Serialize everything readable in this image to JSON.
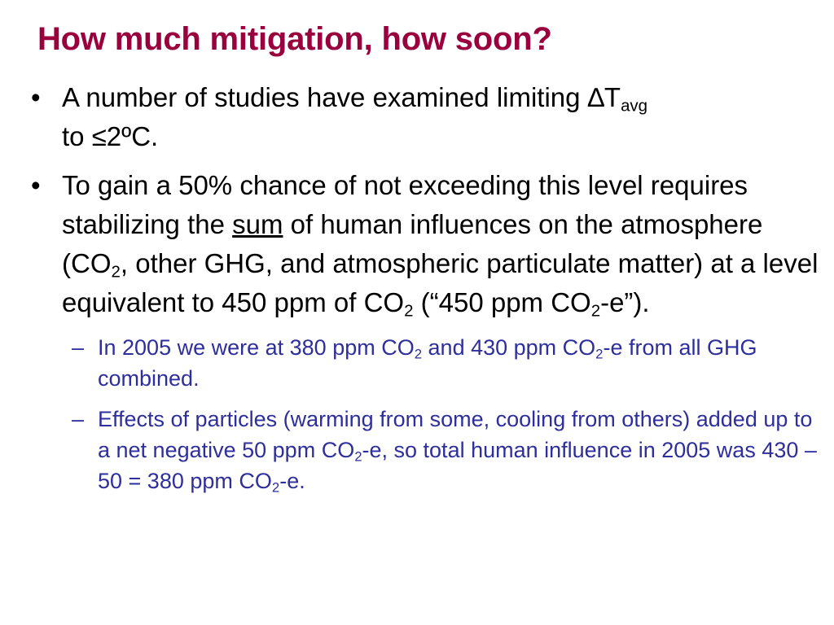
{
  "slide": {
    "title": "How much mitigation, how soon?",
    "bullet_marker": "•",
    "sub_marker": "–",
    "bullet1": {
      "part1": "A number of studies have examined limiting ",
      "delta_symbol": "∆",
      "t": "T",
      "t_sub": "avg",
      "part2": "to ≤2ºC."
    },
    "bullet2": {
      "part1": "To gain a 50% chance of not exceeding this level requires stabilizing the ",
      "underlined": "sum",
      "part2": " of human influences on the atmosphere (CO",
      "sub_a": "2",
      "part3": ", other GHG, and atmospheric particulate matter) at a level equivalent to 450 ppm of CO",
      "sub_b": "2",
      "part4": " (“450 ppm CO",
      "sub_c": "2",
      "part5": "-e”)."
    },
    "sub1": {
      "part1": "In 2005 we were at 380 ppm CO",
      "sub_a": "2",
      "part2": " and 430 ppm CO",
      "sub_b": "2",
      "part3": "-e from all GHG combined."
    },
    "sub2": {
      "part1": "Effects of particles (warming from some, cooling from others) added up to a net negative 50 ppm CO",
      "sub_a": "2",
      "part2": "-e, so total human influence in 2005 was 430 – 50 = 380 ppm CO",
      "sub_b": "2",
      "part3": "-e."
    }
  }
}
